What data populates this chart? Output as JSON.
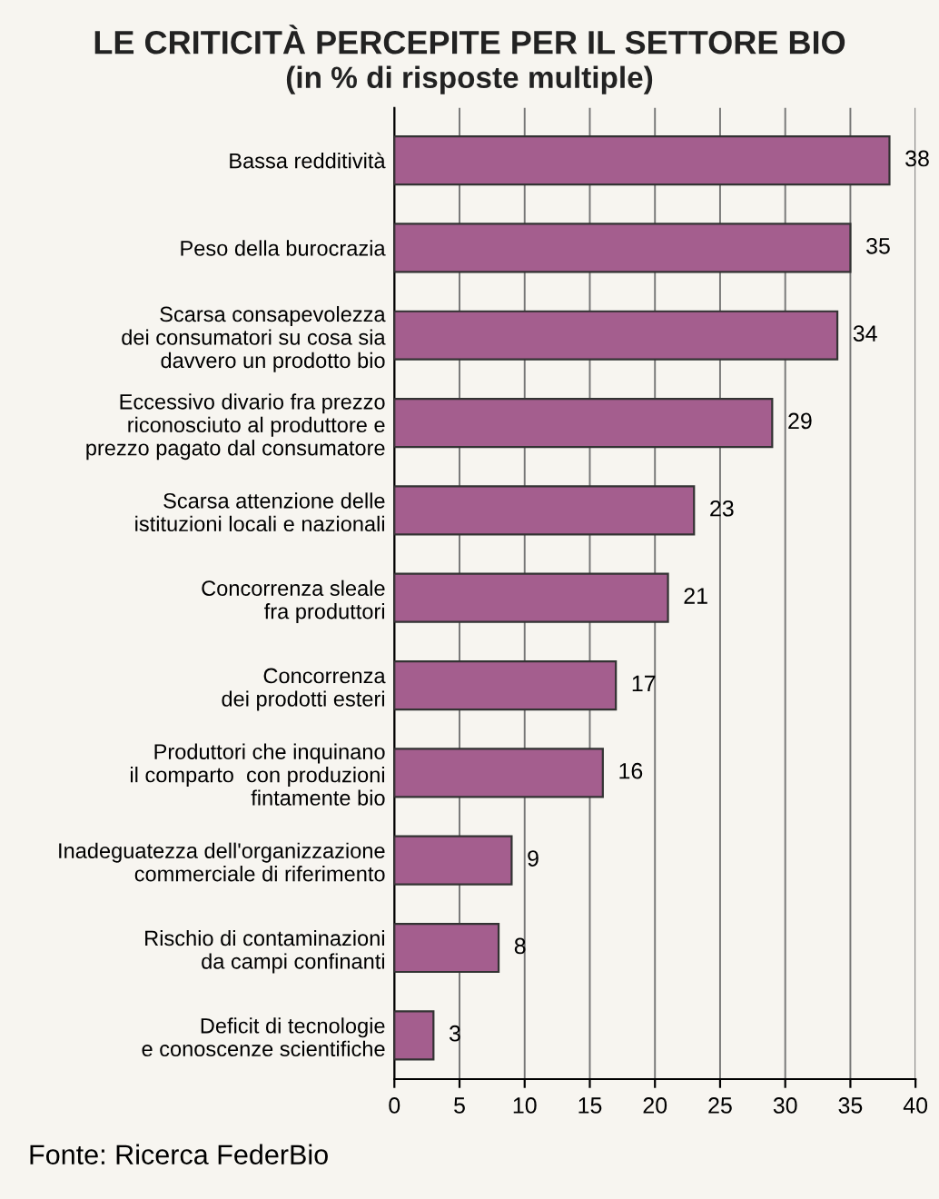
{
  "chart_data": {
    "type": "bar",
    "orientation": "horizontal",
    "title": "LE CRITICITÀ PERCEPITE PER IL SETTORE BIO",
    "subtitle": "(in % di risposte multiple)",
    "categories": [
      "Bassa redditività",
      "Peso della burocrazia",
      "Scarsa consapevolezza\ndei consumatori su cosa sia\ndavvero un prodotto bio",
      "Eccessivo divario fra prezzo\nriconosciuto al produttore e\nprezzo pagato dal consumatore",
      "Scarsa attenzione delle\nistituzioni locali e nazionali",
      "Concorrenza sleale\nfra produttori",
      "Concorrenza\ndei prodotti esteri",
      "Produttori che inquinano\nil comparto  con produzioni\nfintamente bio",
      "Inadeguatezza dell'organizzazione\ncommerciale di riferimento",
      "Rischio di contaminazioni\nda campi confinanti",
      "Deficit di tecnologie\ne conoscenze scientifiche"
    ],
    "values": [
      38,
      35,
      34,
      29,
      23,
      21,
      17,
      16,
      9,
      8,
      3
    ],
    "color": "#a45e8e",
    "data_labels": true,
    "xlim": [
      0,
      40
    ],
    "xticks": [
      0,
      5,
      10,
      15,
      20,
      25,
      30,
      35,
      40
    ],
    "grid": "x",
    "annotations": [
      "Fonte: Ricerca FederBio"
    ]
  }
}
